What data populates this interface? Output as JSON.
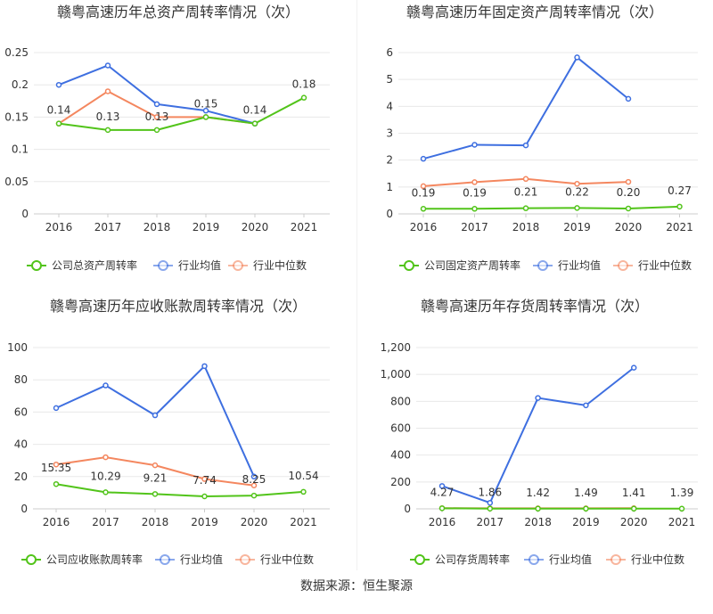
{
  "source": "数据来源：恒生聚源",
  "colors": {
    "company": "#52c41a",
    "avg": "#3e6fe0",
    "median": "#f4875f",
    "axis": "#333333",
    "grid": "#e8e8e8"
  },
  "chart_data": [
    {
      "type": "line",
      "title": "赣粤高速历年总资产周转率情况（次）",
      "categories": [
        "2016",
        "2017",
        "2018",
        "2019",
        "2020",
        "2021"
      ],
      "yticks": [
        "0",
        "0.05",
        "0.1",
        "0.15",
        "0.2",
        "0.25"
      ],
      "ylim": [
        0,
        0.25
      ],
      "legend": [
        "公司总资产周转率",
        "行业均值",
        "行业中位数"
      ],
      "legend_position": "bottom",
      "series": [
        {
          "name": "公司总资产周转率",
          "values": [
            0.14,
            0.13,
            0.13,
            0.15,
            0.14,
            0.18
          ],
          "labels": [
            "0.14",
            "0.13",
            "0.13",
            "0.15",
            "0.14",
            "0.18"
          ]
        },
        {
          "name": "行业均值",
          "values": [
            0.2,
            0.23,
            0.17,
            0.16,
            0.14,
            null
          ]
        },
        {
          "name": "行业中位数",
          "values": [
            0.14,
            0.19,
            0.15,
            0.15,
            0.14,
            null
          ]
        }
      ]
    },
    {
      "type": "line",
      "title": "赣粤高速历年固定资产周转率情况（次）",
      "categories": [
        "2016",
        "2017",
        "2018",
        "2019",
        "2020",
        "2021"
      ],
      "yticks": [
        "0",
        "1",
        "2",
        "3",
        "4",
        "5",
        "6"
      ],
      "ylim": [
        0,
        6
      ],
      "legend": [
        "公司固定资产周转率",
        "行业均值",
        "行业中位数"
      ],
      "legend_position": "bottom",
      "series": [
        {
          "name": "公司固定资产周转率",
          "values": [
            0.19,
            0.19,
            0.21,
            0.22,
            0.2,
            0.27
          ],
          "labels": [
            "0.19",
            "0.19",
            "0.21",
            "0.22",
            "0.20",
            "0.27"
          ]
        },
        {
          "name": "行业均值",
          "values": [
            2.05,
            2.57,
            2.55,
            5.82,
            4.28,
            null
          ]
        },
        {
          "name": "行业中位数",
          "values": [
            1.03,
            1.18,
            1.3,
            1.12,
            1.19,
            null
          ]
        }
      ]
    },
    {
      "type": "line",
      "title": "赣粤高速历年应收账款周转率情况（次）",
      "categories": [
        "2016",
        "2017",
        "2018",
        "2019",
        "2020",
        "2021"
      ],
      "yticks": [
        "0",
        "20",
        "40",
        "60",
        "80",
        "100"
      ],
      "ylim": [
        0,
        100
      ],
      "legend": [
        "公司应收账款周转率",
        "行业均值",
        "行业中位数"
      ],
      "legend_position": "bottom",
      "series": [
        {
          "name": "公司应收账款周转率",
          "values": [
            15.35,
            10.29,
            9.21,
            7.74,
            8.25,
            10.54
          ],
          "labels": [
            "15.35",
            "10.29",
            "9.21",
            "7.74",
            "8.25",
            "10.54"
          ]
        },
        {
          "name": "行业均值",
          "values": [
            62.5,
            76.5,
            58.0,
            88.5,
            20.0,
            null
          ]
        },
        {
          "name": "行业中位数",
          "values": [
            27.5,
            32.0,
            27.0,
            18.5,
            14.5,
            null
          ]
        }
      ]
    },
    {
      "type": "line",
      "title": "赣粤高速历年存货周转率情况（次）",
      "categories": [
        "2016",
        "2017",
        "2018",
        "2019",
        "2020",
        "2021"
      ],
      "yticks": [
        "0",
        "200",
        "400",
        "600",
        "800",
        "1,000",
        "1,200"
      ],
      "ylim": [
        0,
        1200
      ],
      "legend": [
        "公司存货周转率",
        "行业均值",
        "行业中位数"
      ],
      "legend_position": "bottom",
      "series": [
        {
          "name": "公司存货周转率",
          "values": [
            4.27,
            1.86,
            1.42,
            1.49,
            1.41,
            1.39
          ],
          "labels": [
            "4.27",
            "1.86",
            "1.42",
            "1.49",
            "1.41",
            "1.39"
          ]
        },
        {
          "name": "行业均值",
          "values": [
            170,
            45,
            825,
            770,
            1050,
            null
          ]
        },
        {
          "name": "行业中位数",
          "values": [
            5,
            4,
            4,
            4,
            5,
            null
          ]
        }
      ]
    }
  ]
}
